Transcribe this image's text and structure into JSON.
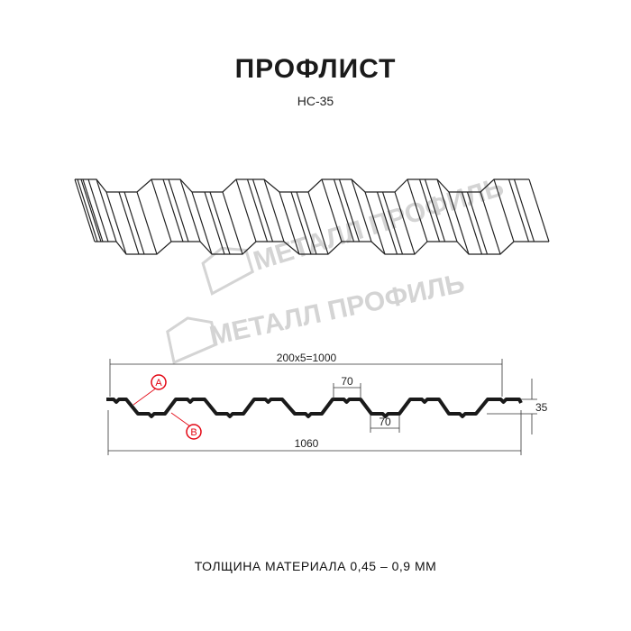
{
  "title": "ПРОФЛИСТ",
  "subtitle": "НС-35",
  "logo_watermark": "МЕТАЛЛ ПРОФИЛЬ",
  "dimensions": {
    "pitch_total": "200x5=1000",
    "crest_width": "70",
    "trough_width": "70",
    "height": "35",
    "overall_width": "1060"
  },
  "callouts": {
    "a": "A",
    "b": "B"
  },
  "footer": "ТОЛЩИНА МАТЕРИАЛА 0,45 – 0,9 ММ",
  "colors": {
    "profile": "#1a1a1a",
    "callout": "#e30613",
    "watermark": "#d4d4d4"
  }
}
